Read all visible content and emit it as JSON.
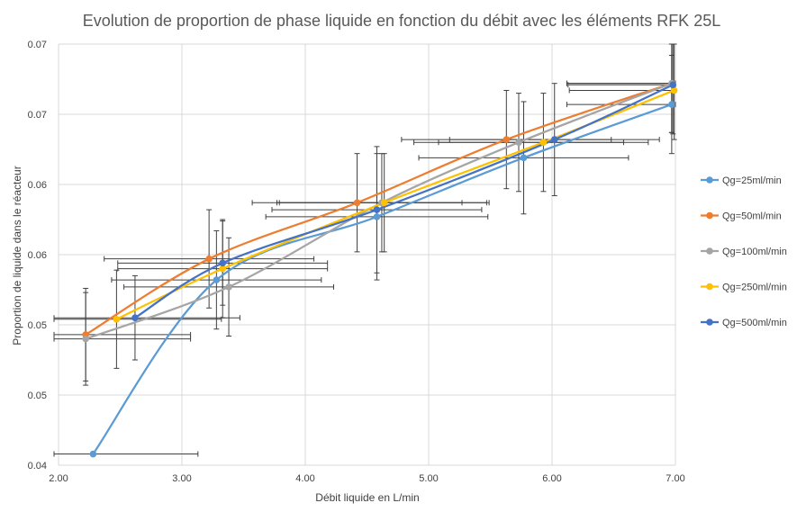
{
  "chart_data": {
    "type": "line",
    "title": "Evolution  de proportion de phase liquide en fonction du débit avec les éléments RFK 25L",
    "xlabel": "Débit liquide en L/min",
    "ylabel": "Proportion de liquide dans le réacteur",
    "xlim": [
      2.0,
      7.0
    ],
    "ylim": [
      0.04,
      0.07
    ],
    "x_ticks": [
      "2.00",
      "3.00",
      "4.00",
      "5.00",
      "6.00",
      "7.00"
    ],
    "y_tick_values": [
      0.04,
      0.045,
      0.05,
      0.055,
      0.06,
      0.065,
      0.07
    ],
    "y_ticks": [
      "0.04",
      "0.05",
      "0.05",
      "0.06",
      "0.06",
      "0.07",
      "0.07"
    ],
    "grid": true,
    "smooth": true,
    "legend_position": "right",
    "series": [
      {
        "name": "Qg=25ml/min",
        "color": "#5B9BD5",
        "points": [
          {
            "x": 2.28,
            "y": 0.0408,
            "xerr": 0.85,
            "yerr": 0.0
          },
          {
            "x": 3.28,
            "y": 0.0532,
            "xerr": 0.85,
            "yerr": 0.0035
          },
          {
            "x": 4.58,
            "y": 0.0577,
            "xerr": 0.9,
            "yerr": 0.0045
          },
          {
            "x": 5.77,
            "y": 0.0619,
            "xerr": 0.85,
            "yerr": 0.004
          },
          {
            "x": 6.97,
            "y": 0.0657,
            "xerr": 0.85,
            "yerr": 0.0035
          }
        ]
      },
      {
        "name": "Qg=50ml/min",
        "color": "#ED7D31",
        "points": [
          {
            "x": 2.22,
            "y": 0.0493,
            "xerr": 0.85,
            "yerr": 0.0033
          },
          {
            "x": 3.22,
            "y": 0.0547,
            "xerr": 0.85,
            "yerr": 0.0035
          },
          {
            "x": 4.42,
            "y": 0.0587,
            "xerr": 0.85,
            "yerr": 0.0035
          },
          {
            "x": 5.63,
            "y": 0.0632,
            "xerr": 0.85,
            "yerr": 0.0035
          },
          {
            "x": 6.97,
            "y": 0.0672,
            "xerr": 0.85,
            "yerr": 0.0035
          }
        ]
      },
      {
        "name": "Qg=100ml/min",
        "color": "#A5A5A5",
        "points": [
          {
            "x": 2.22,
            "y": 0.049,
            "xerr": 0.85,
            "yerr": 0.0033
          },
          {
            "x": 3.38,
            "y": 0.0527,
            "xerr": 0.85,
            "yerr": 0.0035
          },
          {
            "x": 4.62,
            "y": 0.0587,
            "xerr": 0.85,
            "yerr": 0.0035
          },
          {
            "x": 5.73,
            "y": 0.063,
            "xerr": 0.85,
            "yerr": 0.0035
          },
          {
            "x": 6.97,
            "y": 0.0672,
            "xerr": 0.85,
            "yerr": 0.0035
          }
        ]
      },
      {
        "name": "Qg=250ml/min",
        "color": "#FFC000",
        "points": [
          {
            "x": 2.47,
            "y": 0.0504,
            "xerr": 0.85,
            "yerr": 0.0035
          },
          {
            "x": 3.33,
            "y": 0.054,
            "xerr": 0.85,
            "yerr": 0.0035
          },
          {
            "x": 4.64,
            "y": 0.0587,
            "xerr": 0.85,
            "yerr": 0.0035
          },
          {
            "x": 5.93,
            "y": 0.063,
            "xerr": 0.85,
            "yerr": 0.0035
          },
          {
            "x": 6.99,
            "y": 0.0667,
            "xerr": 0.85,
            "yerr": 0.0035
          }
        ]
      },
      {
        "name": "Qg=500ml/min",
        "color": "#4472C4",
        "points": [
          {
            "x": 2.62,
            "y": 0.0505,
            "xerr": 0.85,
            "yerr": 0.003
          },
          {
            "x": 3.33,
            "y": 0.0544,
            "xerr": 0.85,
            "yerr": 0.003
          },
          {
            "x": 4.58,
            "y": 0.0582,
            "xerr": 0.85,
            "yerr": 0.0045
          },
          {
            "x": 6.02,
            "y": 0.0632,
            "xerr": 0.85,
            "yerr": 0.004
          },
          {
            "x": 6.98,
            "y": 0.0671,
            "xerr": 0.85,
            "yerr": 0.0035
          }
        ]
      }
    ]
  }
}
